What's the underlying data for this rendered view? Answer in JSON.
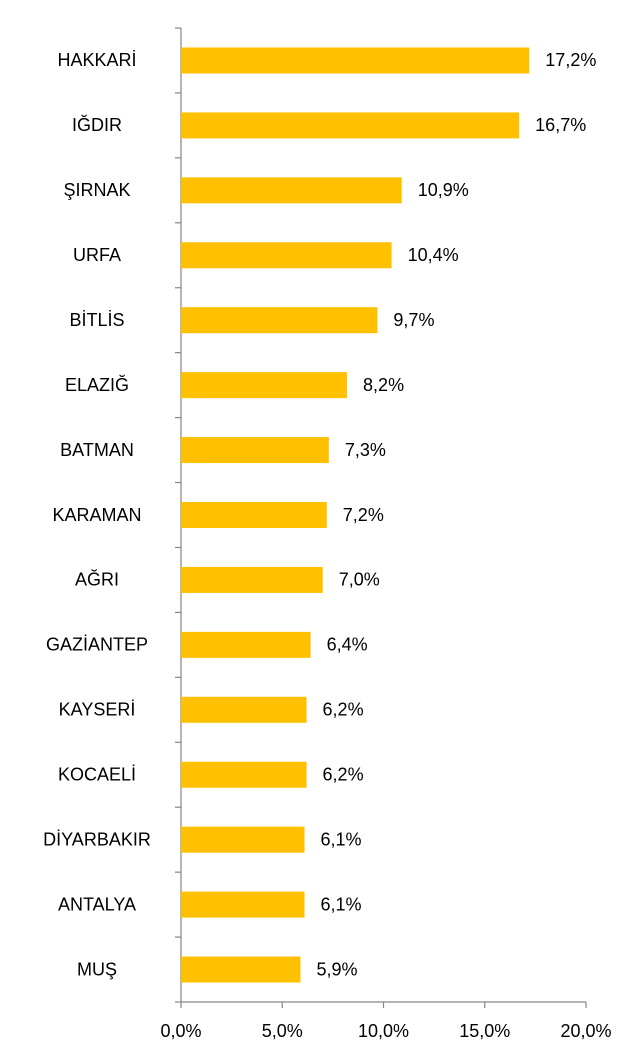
{
  "chart_data": {
    "type": "bar",
    "orientation": "horizontal",
    "categories": [
      "HAKKARİ",
      "IĞDIR",
      "ŞIRNAK",
      "URFA",
      "BİTLİS",
      "ELAZIĞ",
      "BATMAN",
      "KARAMAN",
      "AĞRI",
      "GAZİANTEP",
      "KAYSERİ",
      "KOCAELİ",
      "DİYARBAKIR",
      "ANTALYA",
      "MUŞ"
    ],
    "values": [
      17.2,
      16.7,
      10.9,
      10.4,
      9.7,
      8.2,
      7.3,
      7.2,
      7.0,
      6.4,
      6.2,
      6.2,
      6.1,
      6.1,
      5.9
    ],
    "value_labels": [
      "17,2%",
      "16,7%",
      "10,9%",
      "10,4%",
      "9,7%",
      "8,2%",
      "7,3%",
      "7,2%",
      "7,0%",
      "6,4%",
      "6,2%",
      "6,2%",
      "6,1%",
      "6,1%",
      "5,9%"
    ],
    "color": "#ffc000",
    "xlim": [
      0,
      20
    ],
    "xticks": [
      {
        "value": 0,
        "label": "0,0%"
      },
      {
        "value": 5,
        "label": "5,0%"
      },
      {
        "value": 10,
        "label": "10,0%"
      },
      {
        "value": 15,
        "label": "15,0%"
      },
      {
        "value": 20,
        "label": "20,0%"
      }
    ]
  }
}
